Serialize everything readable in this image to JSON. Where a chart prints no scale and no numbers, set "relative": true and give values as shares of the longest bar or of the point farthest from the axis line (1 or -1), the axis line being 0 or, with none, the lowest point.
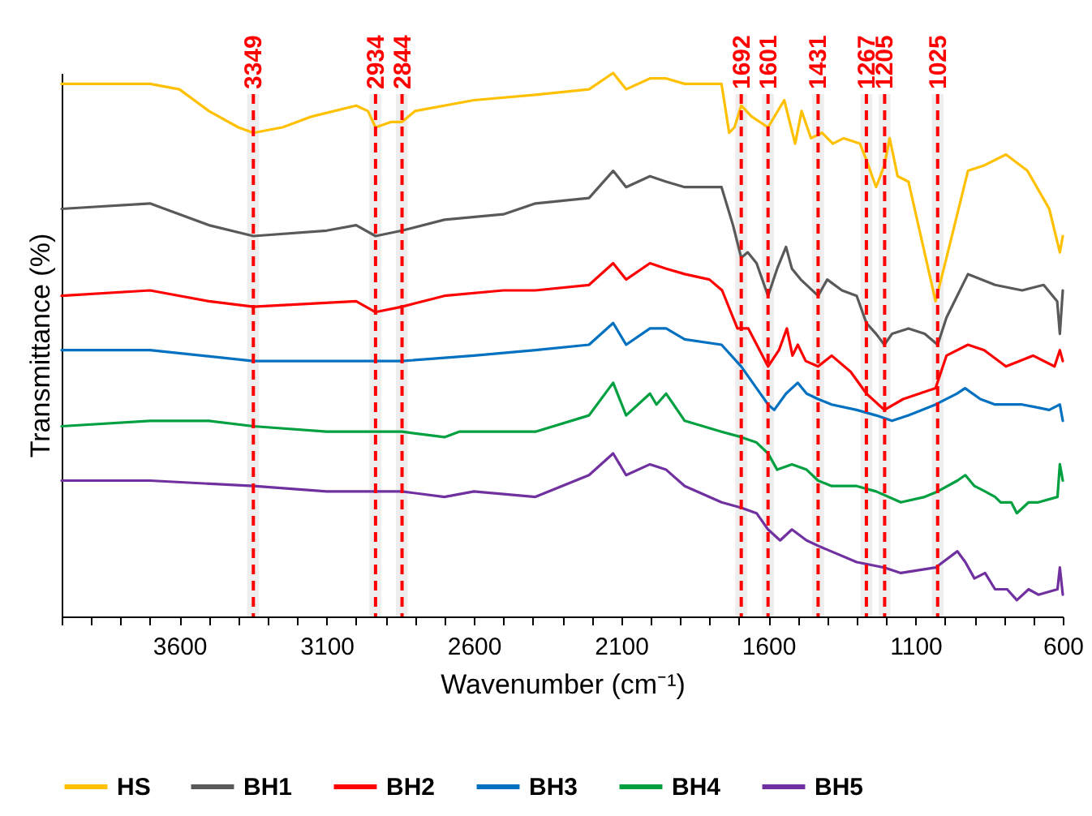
{
  "chart_data": {
    "type": "line",
    "xlabel": "Wavenumber (cm⁻¹)",
    "ylabel": "Transmittance (%)",
    "relative": true,
    "xlim": [
      4000,
      600
    ],
    "xticks": [
      {
        "value": 4000,
        "label": null
      },
      {
        "value": 3900,
        "label": null
      },
      {
        "value": 3800,
        "label": null
      },
      {
        "value": 3700,
        "label": null
      },
      3600,
      {
        "value": 3500,
        "label": null
      },
      {
        "value": 3400,
        "label": null
      },
      {
        "value": 3300,
        "label": null
      },
      {
        "value": 3200,
        "label": null
      },
      3100,
      {
        "value": 3000,
        "label": null
      },
      {
        "value": 2900,
        "label": null
      },
      {
        "value": 2800,
        "label": null
      },
      {
        "value": 2700,
        "label": null
      },
      2600,
      {
        "value": 2500,
        "label": null
      },
      {
        "value": 2400,
        "label": null
      },
      {
        "value": 2300,
        "label": null
      },
      {
        "value": 2200,
        "label": null
      },
      2100,
      {
        "value": 2000,
        "label": null
      },
      {
        "value": 1900,
        "label": null
      },
      {
        "value": 1800,
        "label": null
      },
      {
        "value": 1700,
        "label": null
      },
      1600,
      {
        "value": 1500,
        "label": null
      },
      {
        "value": 1400,
        "label": null
      },
      {
        "value": 1300,
        "label": null
      },
      {
        "value": 1200,
        "label": null
      },
      1100,
      {
        "value": 1000,
        "label": null
      },
      {
        "value": 900,
        "label": null
      },
      {
        "value": 800,
        "label": null
      },
      {
        "value": 700,
        "label": null
      },
      600
    ],
    "grid": false,
    "legend": "bottom",
    "marker": "none",
    "line_style": "solid",
    "series": [
      {
        "name": "HS",
        "color": "#ffc000",
        "x": [
          4000,
          3800,
          3700,
          3600,
          3500,
          3400,
          3349,
          3250,
          3150,
          3000,
          2960,
          2934,
          2880,
          2844,
          2800,
          2600,
          2391,
          2209,
          2127,
          2083,
          2002,
          1947,
          1884,
          1759,
          1733,
          1715,
          1692,
          1657,
          1601,
          1546,
          1509,
          1487,
          1455,
          1418,
          1381,
          1344,
          1289,
          1267,
          1234,
          1206,
          1188,
          1161,
          1124,
          1032,
          995,
          922,
          867,
          793,
          720,
          646,
          610,
          600
        ],
        "values": [
          0.98,
          0.98,
          0.98,
          0.97,
          0.93,
          0.9,
          0.89,
          0.9,
          0.92,
          0.94,
          0.93,
          0.9,
          0.91,
          0.91,
          0.93,
          0.95,
          0.96,
          0.97,
          1.0,
          0.97,
          0.99,
          0.99,
          0.98,
          0.98,
          0.89,
          0.9,
          0.94,
          0.92,
          0.9,
          0.95,
          0.87,
          0.93,
          0.88,
          0.89,
          0.87,
          0.88,
          0.87,
          0.84,
          0.79,
          0.83,
          0.88,
          0.81,
          0.8,
          0.58,
          0.66,
          0.82,
          0.83,
          0.85,
          0.82,
          0.75,
          0.67,
          0.7
        ]
      },
      {
        "name": "BH1",
        "color": "#595959",
        "x": [
          4000,
          3700,
          3500,
          3349,
          3100,
          3000,
          2934,
          2844,
          2700,
          2500,
          2391,
          2209,
          2127,
          2083,
          2002,
          1947,
          1884,
          1759,
          1720,
          1692,
          1670,
          1640,
          1601,
          1570,
          1540,
          1520,
          1490,
          1431,
          1400,
          1350,
          1300,
          1267,
          1234,
          1206,
          1180,
          1124,
          1069,
          1025,
          995,
          922,
          830,
          738,
          665,
          619,
          610,
          600
        ],
        "values": [
          0.75,
          0.76,
          0.72,
          0.7,
          0.71,
          0.72,
          0.7,
          0.71,
          0.73,
          0.74,
          0.76,
          0.77,
          0.82,
          0.79,
          0.81,
          0.8,
          0.79,
          0.79,
          0.72,
          0.66,
          0.67,
          0.65,
          0.59,
          0.64,
          0.68,
          0.64,
          0.62,
          0.59,
          0.62,
          0.6,
          0.59,
          0.54,
          0.52,
          0.5,
          0.52,
          0.53,
          0.52,
          0.5,
          0.55,
          0.63,
          0.61,
          0.6,
          0.61,
          0.58,
          0.52,
          0.6
        ]
      },
      {
        "name": "BH2",
        "color": "#ff0000",
        "x": [
          4000,
          3700,
          3500,
          3349,
          3000,
          2934,
          2844,
          2700,
          2500,
          2391,
          2209,
          2127,
          2083,
          2002,
          1947,
          1884,
          1800,
          1757,
          1705,
          1668,
          1601,
          1564,
          1537,
          1518,
          1500,
          1473,
          1431,
          1385,
          1320,
          1267,
          1206,
          1142,
          1032,
          995,
          922,
          867,
          793,
          701,
          628,
          610,
          600
        ],
        "values": [
          0.59,
          0.6,
          0.58,
          0.57,
          0.58,
          0.56,
          0.57,
          0.59,
          0.6,
          0.6,
          0.61,
          0.65,
          0.62,
          0.65,
          0.64,
          0.63,
          0.62,
          0.6,
          0.53,
          0.53,
          0.46,
          0.49,
          0.53,
          0.48,
          0.5,
          0.47,
          0.46,
          0.48,
          0.45,
          0.41,
          0.38,
          0.4,
          0.42,
          0.48,
          0.5,
          0.49,
          0.46,
          0.48,
          0.46,
          0.49,
          0.47
        ]
      },
      {
        "name": "BH3",
        "color": "#0070c0",
        "x": [
          4000,
          3700,
          3349,
          3100,
          2934,
          2844,
          2600,
          2391,
          2209,
          2127,
          2083,
          2002,
          1947,
          1884,
          1759,
          1692,
          1640,
          1601,
          1580,
          1540,
          1500,
          1470,
          1431,
          1385,
          1300,
          1234,
          1180,
          1124,
          1032,
          960,
          932,
          880,
          830,
          738,
          646,
          610,
          600
        ],
        "values": [
          0.49,
          0.49,
          0.47,
          0.47,
          0.47,
          0.47,
          0.48,
          0.49,
          0.5,
          0.54,
          0.5,
          0.53,
          0.53,
          0.51,
          0.5,
          0.46,
          0.42,
          0.39,
          0.38,
          0.41,
          0.43,
          0.41,
          0.4,
          0.39,
          0.38,
          0.37,
          0.36,
          0.37,
          0.39,
          0.41,
          0.42,
          0.4,
          0.39,
          0.39,
          0.38,
          0.39,
          0.36
        ]
      },
      {
        "name": "BH4",
        "color": "#00a040",
        "x": [
          4000,
          3700,
          3500,
          3349,
          3100,
          3000,
          2844,
          2700,
          2650,
          2550,
          2391,
          2209,
          2127,
          2083,
          2002,
          1980,
          1947,
          1884,
          1759,
          1692,
          1640,
          1601,
          1570,
          1520,
          1470,
          1431,
          1385,
          1300,
          1234,
          1150,
          1069,
          1025,
          958,
          931,
          900,
          864,
          830,
          811,
          789,
          775,
          756,
          716,
          683,
          618,
          610,
          600
        ],
        "values": [
          0.35,
          0.36,
          0.36,
          0.35,
          0.34,
          0.34,
          0.34,
          0.33,
          0.34,
          0.34,
          0.34,
          0.37,
          0.43,
          0.37,
          0.41,
          0.39,
          0.41,
          0.36,
          0.34,
          0.33,
          0.32,
          0.3,
          0.27,
          0.28,
          0.27,
          0.25,
          0.24,
          0.24,
          0.23,
          0.21,
          0.22,
          0.23,
          0.25,
          0.26,
          0.24,
          0.23,
          0.22,
          0.21,
          0.21,
          0.21,
          0.19,
          0.21,
          0.21,
          0.22,
          0.28,
          0.25
        ]
      },
      {
        "name": "BH5",
        "color": "#7030a0",
        "x": [
          4000,
          3700,
          3349,
          3100,
          2934,
          2844,
          2700,
          2600,
          2391,
          2209,
          2127,
          2083,
          2002,
          1947,
          1884,
          1759,
          1692,
          1640,
          1601,
          1560,
          1520,
          1470,
          1431,
          1300,
          1206,
          1150,
          1032,
          958,
          931,
          900,
          864,
          830,
          789,
          756,
          716,
          683,
          618,
          610,
          600
        ],
        "values": [
          0.25,
          0.25,
          0.24,
          0.23,
          0.23,
          0.23,
          0.22,
          0.23,
          0.22,
          0.26,
          0.3,
          0.26,
          0.28,
          0.27,
          0.24,
          0.21,
          0.2,
          0.19,
          0.16,
          0.14,
          0.16,
          0.14,
          0.13,
          0.1,
          0.09,
          0.08,
          0.09,
          0.12,
          0.1,
          0.07,
          0.08,
          0.05,
          0.05,
          0.03,
          0.05,
          0.04,
          0.05,
          0.09,
          0.04
        ]
      }
    ],
    "ref_lines": [
      {
        "axis": "x",
        "value": 3349,
        "label": "3349",
        "color": "#ff0000",
        "line_style": "dashed"
      },
      {
        "axis": "x",
        "value": 2934,
        "label": "2934",
        "color": "#ff0000",
        "line_style": "dashed"
      },
      {
        "axis": "x",
        "value": 2844,
        "label": "2844",
        "color": "#ff0000",
        "line_style": "dashed"
      },
      {
        "axis": "x",
        "value": 1692,
        "label": "1692",
        "color": "#ff0000",
        "line_style": "dashed"
      },
      {
        "axis": "x",
        "value": 1601,
        "label": "1601",
        "color": "#ff0000",
        "line_style": "dashed"
      },
      {
        "axis": "x",
        "value": 1431,
        "label": "1431",
        "color": "#ff0000",
        "line_style": "dashed"
      },
      {
        "axis": "x",
        "value": 1267,
        "label": "1267",
        "color": "#ff0000",
        "line_style": "dashed"
      },
      {
        "axis": "x",
        "value": 1205,
        "label": "1205",
        "color": "#ff0000",
        "line_style": "dashed"
      },
      {
        "axis": "x",
        "value": 1025,
        "label": "1025",
        "color": "#ff0000",
        "line_style": "dashed"
      }
    ],
    "bands": [
      {
        "axis": "x",
        "from": 3370,
        "to": 3330,
        "color": "#eeeeee"
      },
      {
        "axis": "x",
        "from": 2955,
        "to": 2915,
        "color": "#eeeeee"
      },
      {
        "axis": "x",
        "from": 2865,
        "to": 2825,
        "color": "#eeeeee"
      },
      {
        "axis": "x",
        "from": 1712,
        "to": 1672,
        "color": "#eeeeee"
      },
      {
        "axis": "x",
        "from": 1621,
        "to": 1581,
        "color": "#eeeeee"
      },
      {
        "axis": "x",
        "from": 1451,
        "to": 1411,
        "color": "#eeeeee"
      },
      {
        "axis": "x",
        "from": 1287,
        "to": 1247,
        "color": "#eeeeee"
      },
      {
        "axis": "x",
        "from": 1225,
        "to": 1185,
        "color": "#eeeeee"
      },
      {
        "axis": "x",
        "from": 1045,
        "to": 1005,
        "color": "#eeeeee"
      }
    ]
  }
}
